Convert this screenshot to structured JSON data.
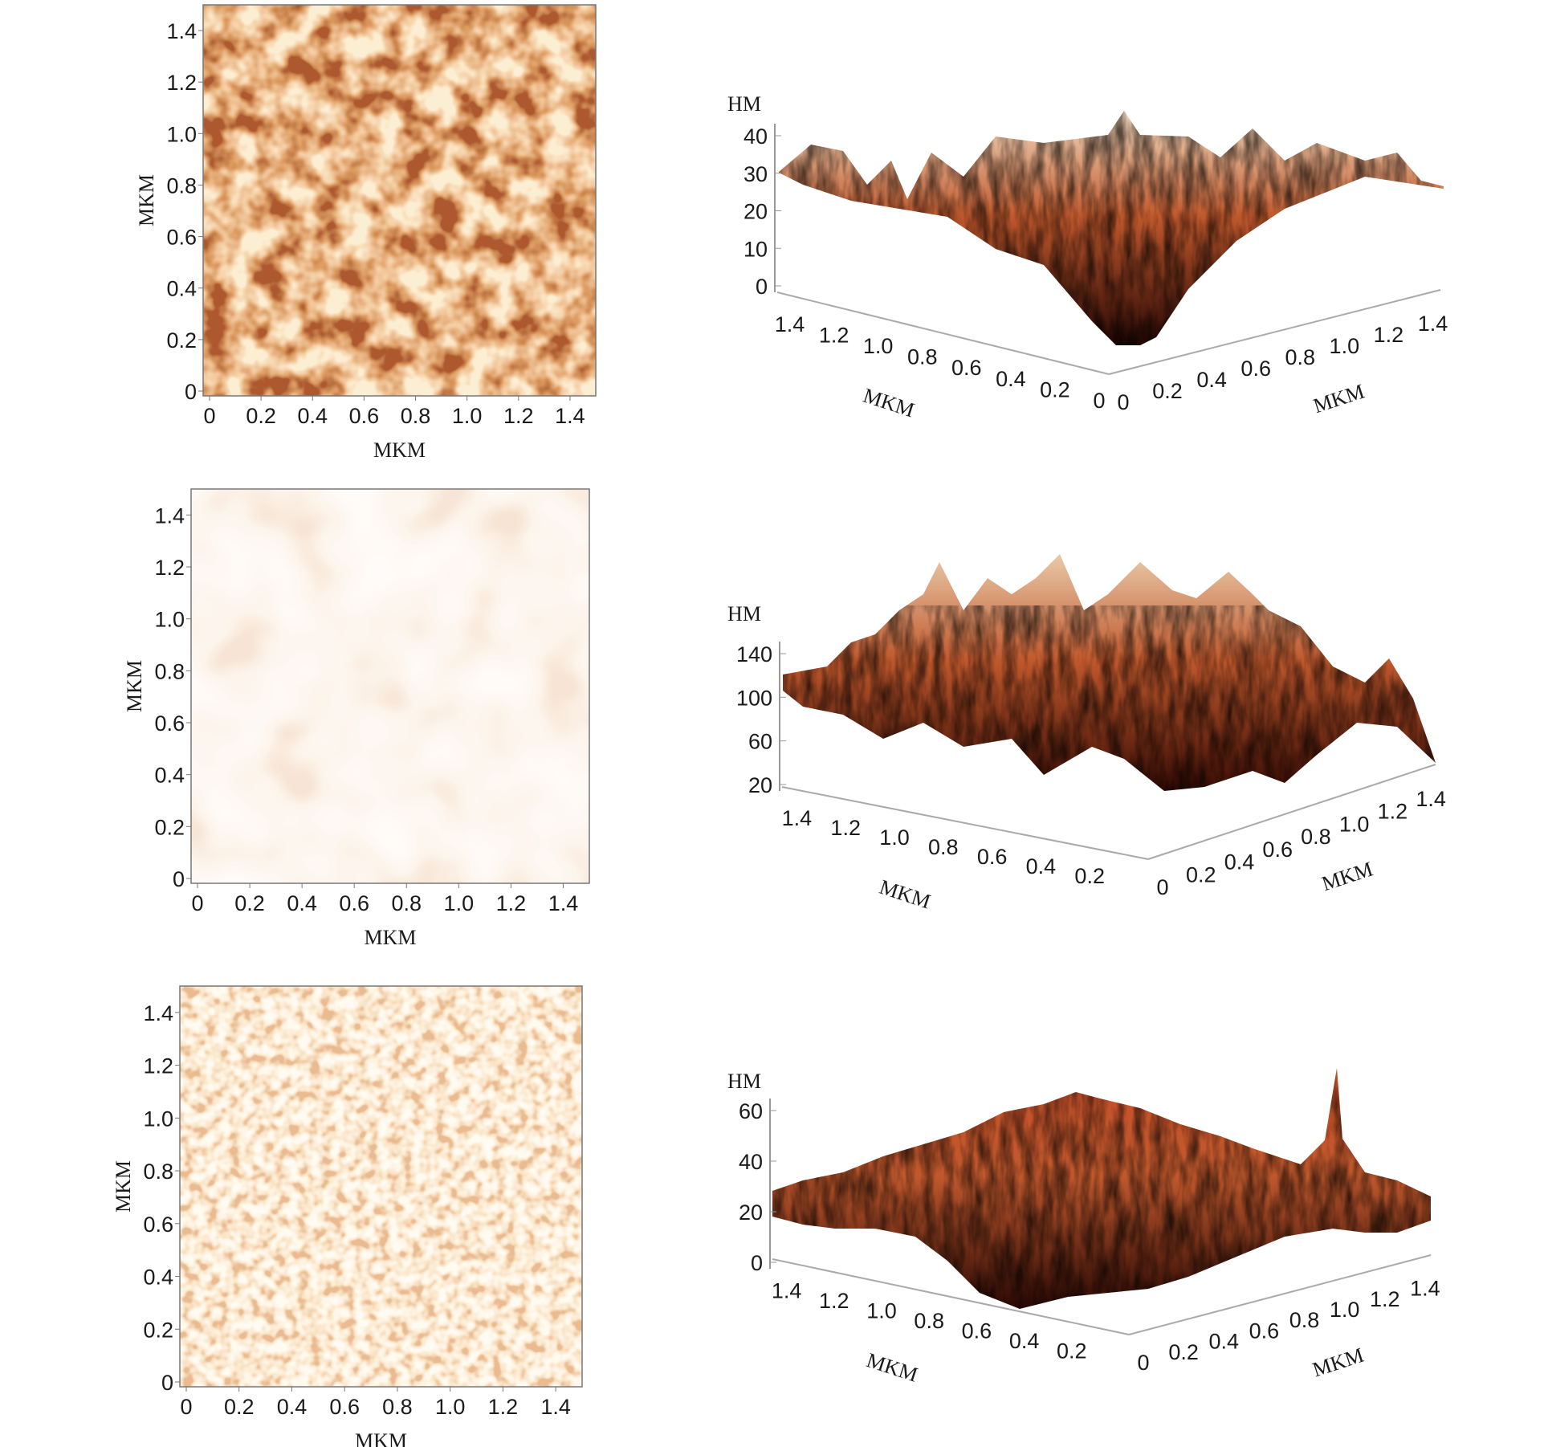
{
  "chart_data": [
    {
      "type": "heatmap",
      "panel": "row1-2d",
      "xlabel": "MKM",
      "ylabel": "MKM",
      "xlim": [
        0,
        1.5
      ],
      "ylim": [
        0,
        1.5
      ],
      "xticks": [
        "0",
        "0.2",
        "0.4",
        "0.6",
        "0.8",
        "1.0",
        "1.2",
        "1.4"
      ],
      "yticks": [
        "0",
        "0.2",
        "0.4",
        "0.6",
        "0.8",
        "1.0",
        "1.2",
        "1.4"
      ],
      "colors": {
        "dark": "#7a200a",
        "light": "#f6d6a6"
      }
    },
    {
      "type": "surface",
      "panel": "row1-3d",
      "zlabel": "HM",
      "xlabel": "MKM",
      "ylabel": "MKM",
      "zticks": [
        "0",
        "10",
        "20",
        "30",
        "40"
      ],
      "left_ticks": [
        "1.4",
        "1.2",
        "1.0",
        "0.8",
        "0.6",
        "0.4",
        "0.2",
        "0"
      ],
      "right_ticks": [
        "0",
        "0.2",
        "0.4",
        "0.6",
        "0.8",
        "1.0",
        "1.2",
        "1.4"
      ],
      "zlim": [
        0,
        40
      ],
      "colors": {
        "top": "#f2dcc0",
        "bottom": "#2a0804"
      }
    },
    {
      "type": "heatmap",
      "panel": "row2-2d",
      "xlabel": "MKM",
      "ylabel": "MKM",
      "xlim": [
        0,
        1.5
      ],
      "ylim": [
        0,
        1.5
      ],
      "xticks": [
        "0",
        "0.2",
        "0.4",
        "0.6",
        "0.8",
        "1.0",
        "1.2",
        "1.4"
      ],
      "yticks": [
        "0",
        "0.2",
        "0.4",
        "0.6",
        "0.8",
        "1.0",
        "1.2",
        "1.4"
      ],
      "colors": {
        "dark": "#e8b898",
        "light": "#fdf3ec"
      }
    },
    {
      "type": "surface",
      "panel": "row2-3d",
      "zlabel": "HM",
      "xlabel": "MKM",
      "ylabel": "MKM",
      "zticks": [
        "20",
        "60",
        "100",
        "140"
      ],
      "left_ticks": [
        "1.4",
        "1.2",
        "1.0",
        "0.8",
        "0.6",
        "0.4",
        "0.2"
      ],
      "right_ticks": [
        "0",
        "0.2",
        "0.4",
        "0.6",
        "0.8",
        "1.0",
        "1.2",
        "1.4"
      ],
      "zlim": [
        20,
        140
      ],
      "colors": {
        "top": "#e9c9a8",
        "bottom": "#3a0c04"
      }
    },
    {
      "type": "heatmap",
      "panel": "row3-2d",
      "xlabel": "MKM",
      "ylabel": "MKM",
      "xlim": [
        0,
        1.5
      ],
      "ylim": [
        0,
        1.5
      ],
      "xticks": [
        "0",
        "0.2",
        "0.4",
        "0.6",
        "0.8",
        "1.0",
        "1.2",
        "1.4"
      ],
      "yticks": [
        "0",
        "0.2",
        "0.4",
        "0.6",
        "0.8",
        "1.0",
        "1.2",
        "1.4"
      ],
      "colors": {
        "dark": "#d88a50",
        "light": "#fff4e4"
      }
    },
    {
      "type": "surface",
      "panel": "row3-3d",
      "zlabel": "HM",
      "xlabel": "MKM",
      "ylabel": "MKM",
      "zticks": [
        "0",
        "20",
        "40",
        "60"
      ],
      "left_ticks": [
        "1.4",
        "1.2",
        "1.0",
        "0.8",
        "0.6",
        "0.4",
        "0.2"
      ],
      "right_ticks": [
        "0",
        "0.2",
        "0.4",
        "0.6",
        "0.8",
        "1.0",
        "1.2",
        "1.4"
      ],
      "zlim": [
        0,
        60
      ],
      "colors": {
        "top": "#c8502a",
        "bottom": "#2a0804"
      }
    }
  ]
}
